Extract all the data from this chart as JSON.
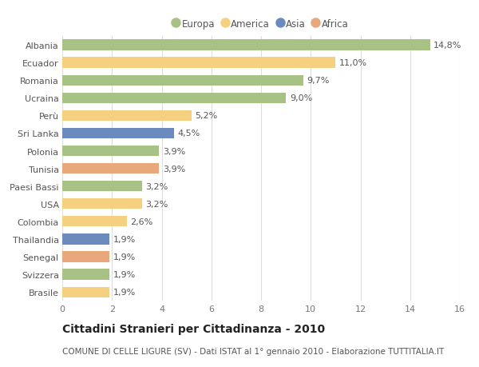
{
  "categories": [
    "Albania",
    "Ecuador",
    "Romania",
    "Ucraina",
    "Perù",
    "Sri Lanka",
    "Polonia",
    "Tunisia",
    "Paesi Bassi",
    "USA",
    "Colombia",
    "Thailandia",
    "Senegal",
    "Svizzera",
    "Brasile"
  ],
  "values": [
    14.8,
    11.0,
    9.7,
    9.0,
    5.2,
    4.5,
    3.9,
    3.9,
    3.2,
    3.2,
    2.6,
    1.9,
    1.9,
    1.9,
    1.9
  ],
  "labels": [
    "14,8%",
    "11,0%",
    "9,7%",
    "9,0%",
    "5,2%",
    "4,5%",
    "3,9%",
    "3,9%",
    "3,2%",
    "3,2%",
    "2,6%",
    "1,9%",
    "1,9%",
    "1,9%",
    "1,9%"
  ],
  "continents": [
    "Europa",
    "America",
    "Europa",
    "Europa",
    "America",
    "Asia",
    "Europa",
    "Africa",
    "Europa",
    "America",
    "America",
    "Asia",
    "Africa",
    "Europa",
    "America"
  ],
  "continent_colors": {
    "Europa": "#a8c285",
    "America": "#f5d080",
    "Asia": "#6b8bbf",
    "Africa": "#e8a87c"
  },
  "legend_order": [
    "Europa",
    "America",
    "Asia",
    "Africa"
  ],
  "xlim": [
    0,
    16
  ],
  "xticks": [
    0,
    2,
    4,
    6,
    8,
    10,
    12,
    14,
    16
  ],
  "title": "Cittadini Stranieri per Cittadinanza - 2010",
  "subtitle": "COMUNE DI CELLE LIGURE (SV) - Dati ISTAT al 1° gennaio 2010 - Elaborazione TUTTITALIA.IT",
  "plot_bg_color": "#ffffff",
  "fig_bg_color": "#ffffff",
  "bar_height": 0.6,
  "title_fontsize": 10,
  "subtitle_fontsize": 7.5,
  "label_fontsize": 8,
  "tick_fontsize": 8,
  "legend_fontsize": 8.5
}
